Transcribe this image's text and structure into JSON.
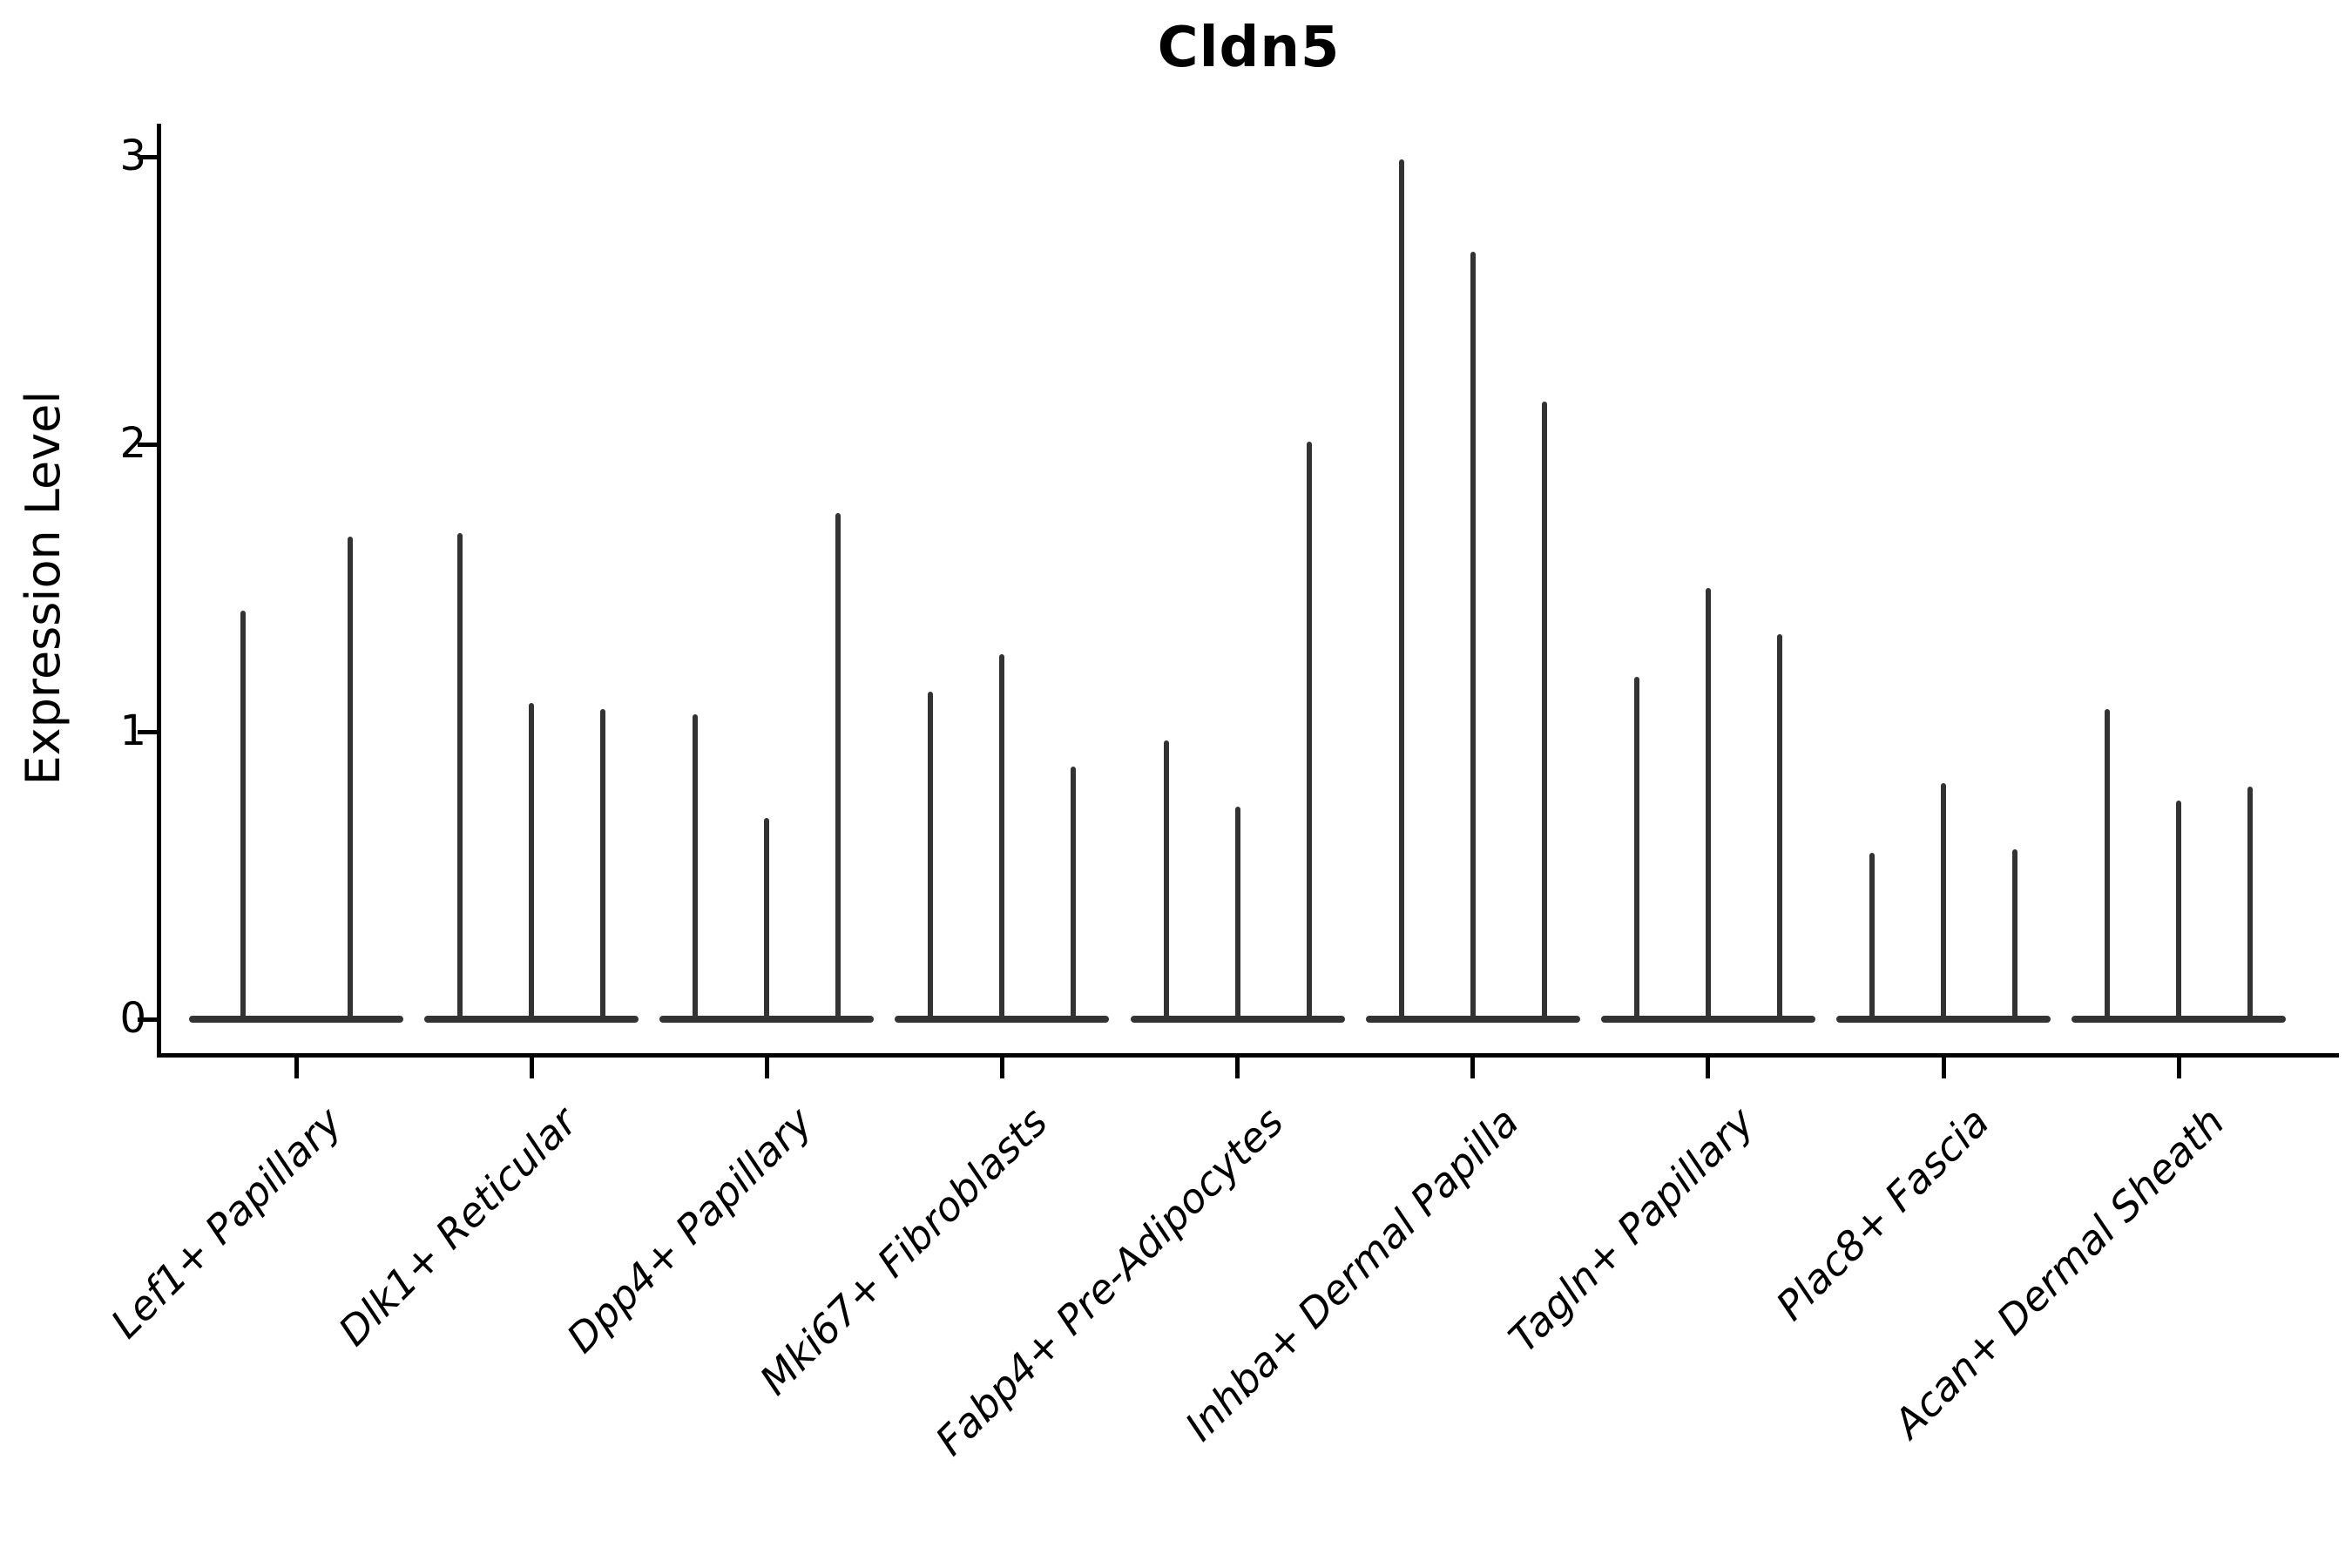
{
  "chart_data": {
    "type": "violin",
    "title": "Cldn5",
    "xlabel": "",
    "ylabel": "Expression Level",
    "ylim": [
      -0.12,
      3.15
    ],
    "yticks": [
      0,
      1,
      2,
      3
    ],
    "grid": false,
    "legend": "none",
    "categories": [
      "Lef1+ Papillary",
      "Dlk1+ Reticular",
      "Dpp4+ Papillary",
      "Mki67+ Fibroblasts",
      "Fabp4+ Pre-Adipocytes",
      "Inhba+ Dermal Papilla",
      "Tagln+ Papillary",
      "Plac8+ Fascia",
      "Acan+ Dermal Sheath"
    ],
    "groups": [
      {
        "category": "Lef1+ Papillary",
        "spike_heights": [
          1.42,
          1.68
        ]
      },
      {
        "category": "Dlk1+ Reticular",
        "spike_heights": [
          1.69,
          1.1,
          1.08
        ]
      },
      {
        "category": "Dpp4+ Papillary",
        "spike_heights": [
          1.06,
          0.7,
          1.76
        ]
      },
      {
        "category": "Mki67+ Fibroblasts",
        "spike_heights": [
          1.14,
          1.27,
          0.88
        ]
      },
      {
        "category": "Fabp4+ Pre-Adipocytes",
        "spike_heights": [
          0.97,
          0.74,
          2.01
        ]
      },
      {
        "category": "Inhba+ Dermal Papilla",
        "spike_heights": [
          2.99,
          2.67,
          2.15
        ]
      },
      {
        "category": "Tagln+ Papillary",
        "spike_heights": [
          1.19,
          1.5,
          1.34
        ]
      },
      {
        "category": "Plac8+ Fascia",
        "spike_heights": [
          0.58,
          0.82,
          0.59
        ]
      },
      {
        "category": "Acan+ Dermal Sheath",
        "spike_heights": [
          1.08,
          0.76,
          0.81
        ]
      }
    ],
    "colors": {
      "violin": "#333333",
      "axis": "#000000",
      "text": "#000000",
      "background": "#ffffff"
    }
  }
}
